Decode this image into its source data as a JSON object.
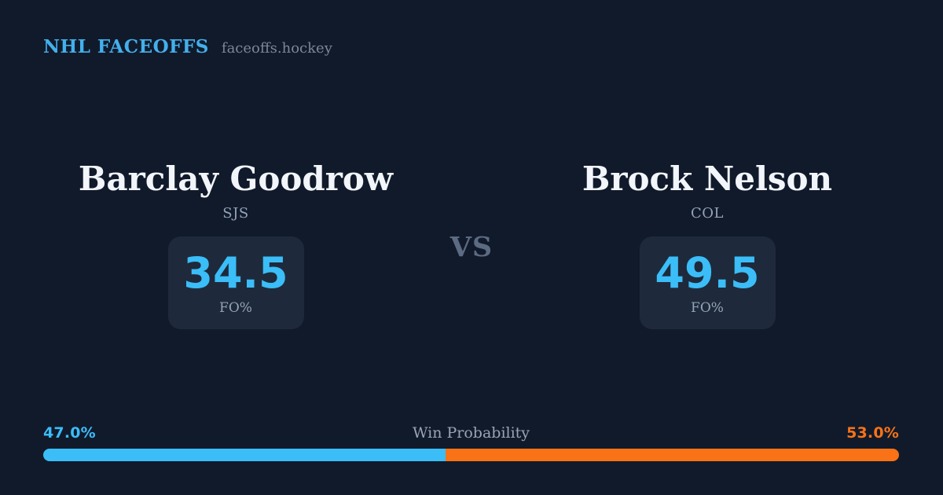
{
  "header": {
    "title": "NHL FACEOFFS",
    "site": "faceoffs.hockey"
  },
  "vs_label": "VS",
  "players": [
    {
      "name": "Barclay Goodrow",
      "team": "SJS",
      "stat_value": "34.5",
      "stat_label": "FO%"
    },
    {
      "name": "Brock Nelson",
      "team": "COL",
      "stat_value": "49.5",
      "stat_label": "FO%"
    }
  ],
  "win_probability": {
    "label": "Win Probability",
    "left_pct_label": "47.0%",
    "right_pct_label": "53.0%",
    "left_value": 47.0,
    "right_value": 53.0
  },
  "colors": {
    "background": "#111a2b",
    "card_background": "#1e2a3b",
    "accent_blue": "#3bbdf8",
    "accent_orange": "#f97316",
    "header_blue": "#43b0ec",
    "text_primary": "#f2f5f9",
    "text_muted": "#94a3b8"
  }
}
